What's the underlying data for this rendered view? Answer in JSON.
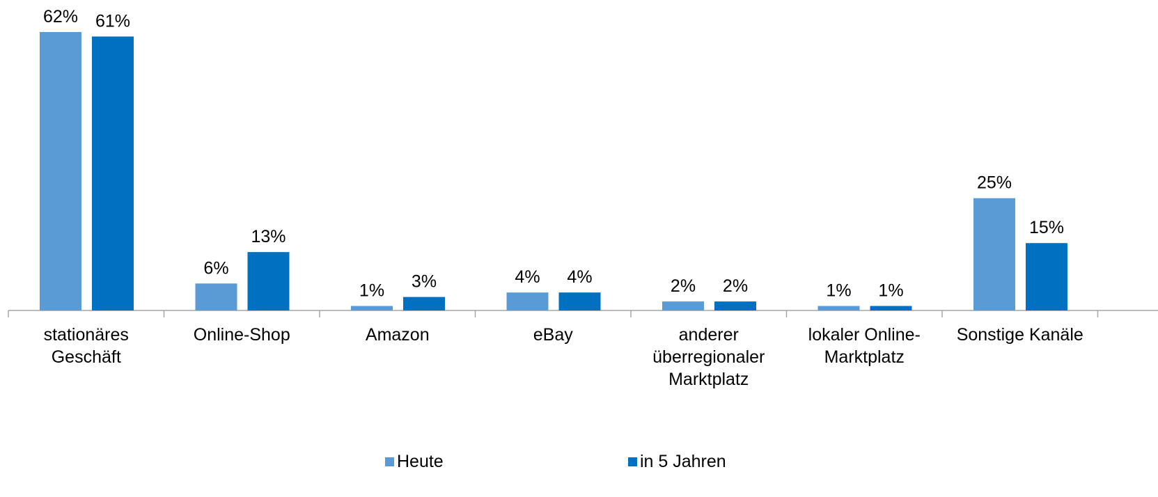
{
  "chart_data": {
    "type": "bar",
    "categories": [
      "stationäres\nGeschäft",
      "Online-Shop",
      "Amazon",
      "eBay",
      "anderer\nüberregionaler\nMarktplatz",
      "lokaler Online-\nMarktplatz",
      "Sonstige Kanäle"
    ],
    "series": [
      {
        "name": "Heute",
        "values": [
          62,
          6,
          1,
          4,
          2,
          1,
          25
        ],
        "labels": [
          "62%",
          "6%",
          "1%",
          "4%",
          "2%",
          "1%",
          "25%"
        ],
        "color": "#5B9BD5"
      },
      {
        "name": "in 5 Jahren",
        "values": [
          61,
          13,
          3,
          4,
          2,
          1,
          15
        ],
        "labels": [
          "61%",
          "13%",
          "3%",
          "4%",
          "2%",
          "1%",
          "15%"
        ],
        "color": "#0070C0"
      }
    ],
    "ylim": [
      0,
      62
    ],
    "grid": false,
    "legend": "bottom"
  }
}
